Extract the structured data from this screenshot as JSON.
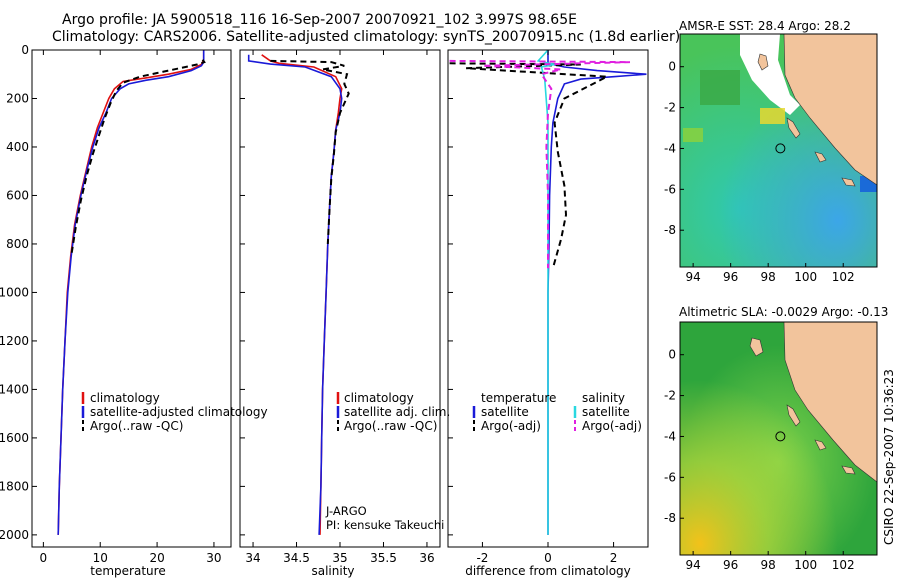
{
  "header": {
    "line1": "Argo profile: JA 5900518_116 16-Sep-2007 20070921_102 3.997S 98.65E",
    "line2": "Climatology: CARS2006. Satellite-adjusted climatology: synTS_20070915.nc (1.8d earlier)"
  },
  "footer": {
    "stamp": "CSIRO 22-Sep-2007 10:36:23"
  },
  "colors": {
    "climatology": "#e01010",
    "satellite": "#1a1ad8",
    "argo": "#000000",
    "sal_satellite": "#29d8e0",
    "sal_argo": "#e020e0",
    "land": "#f2c49c"
  },
  "chart_data": [
    {
      "type": "line",
      "id": "temperature",
      "xlabel": "temperature",
      "ylabel": "",
      "xlim": [
        -2,
        33
      ],
      "ylim": [
        2050,
        0
      ],
      "xticks": [
        0,
        10,
        20,
        30
      ],
      "yticks": [
        0,
        200,
        400,
        600,
        800,
        1000,
        1200,
        1400,
        1600,
        1800,
        2000
      ],
      "legend": [
        "climatology",
        "satellite-adjusted climatology",
        "Argo(..raw -QC)"
      ],
      "series": [
        {
          "name": "climatology",
          "color": "#e01010",
          "dash": "",
          "points": [
            [
              28.2,
              0
            ],
            [
              28.2,
              40
            ],
            [
              27.8,
              60
            ],
            [
              26,
              80
            ],
            [
              22,
              100
            ],
            [
              18,
              115
            ],
            [
              14,
              130
            ],
            [
              12.5,
              160
            ],
            [
              11.5,
              200
            ],
            [
              10.5,
              260
            ],
            [
              9.5,
              320
            ],
            [
              8.5,
              400
            ],
            [
              7.5,
              500
            ],
            [
              6.5,
              600
            ],
            [
              5.5,
              720
            ],
            [
              4.8,
              850
            ],
            [
              4.2,
              1000
            ],
            [
              3.8,
              1200
            ],
            [
              3.4,
              1400
            ],
            [
              3.1,
              1600
            ],
            [
              2.8,
              1800
            ],
            [
              2.6,
              2000
            ]
          ]
        },
        {
          "name": "satellite-adjusted climatology",
          "color": "#1a1ad8",
          "dash": "",
          "points": [
            [
              28.2,
              0
            ],
            [
              28.2,
              50
            ],
            [
              27.8,
              65
            ],
            [
              26,
              85
            ],
            [
              22,
              110
            ],
            [
              18,
              125
            ],
            [
              15,
              140
            ],
            [
              13.5,
              160
            ],
            [
              12,
              200
            ],
            [
              11,
              260
            ],
            [
              9.8,
              320
            ],
            [
              8.7,
              400
            ],
            [
              7.6,
              500
            ],
            [
              6.6,
              600
            ],
            [
              5.6,
              720
            ],
            [
              4.9,
              850
            ],
            [
              4.3,
              1000
            ],
            [
              3.8,
              1200
            ],
            [
              3.4,
              1400
            ],
            [
              3.1,
              1600
            ],
            [
              2.8,
              1800
            ],
            [
              2.6,
              2000
            ]
          ]
        },
        {
          "name": "Argo(..raw -QC)",
          "color": "#000000",
          "dash": "6,4",
          "points": [
            [
              28,
              40
            ],
            [
              28.3,
              50
            ],
            [
              27,
              60
            ],
            [
              24,
              75
            ],
            [
              20,
              95
            ],
            [
              17,
              110
            ],
            [
              14,
              135
            ],
            [
              12.8,
              170
            ],
            [
              11.8,
              220
            ],
            [
              10.8,
              280
            ],
            [
              9.8,
              350
            ],
            [
              8.7,
              430
            ],
            [
              7.6,
              520
            ],
            [
              6.6,
              620
            ],
            [
              5.7,
              730
            ],
            [
              4.9,
              850
            ]
          ]
        }
      ]
    },
    {
      "type": "line",
      "id": "salinity",
      "xlabel": "salinity",
      "xlim": [
        33.85,
        36.15
      ],
      "ylim": [
        2050,
        0
      ],
      "xticks": [
        34,
        34.5,
        35,
        35.5,
        36
      ],
      "legend": [
        "climatology",
        "satellite adj. clim.",
        "Argo(..raw -QC)"
      ],
      "annotation": [
        "J-ARGO",
        "PI: kensuke Takeuchi"
      ],
      "series": [
        {
          "name": "climatology",
          "color": "#e01010",
          "dash": "",
          "points": [
            [
              34.1,
              20
            ],
            [
              34.2,
              45
            ],
            [
              34.3,
              55
            ],
            [
              34.7,
              70
            ],
            [
              34.95,
              110
            ],
            [
              35.02,
              160
            ],
            [
              35.0,
              200
            ],
            [
              34.98,
              260
            ],
            [
              34.95,
              330
            ],
            [
              34.93,
              420
            ],
            [
              34.9,
              520
            ],
            [
              34.88,
              650
            ],
            [
              34.86,
              800
            ],
            [
              34.84,
              1000
            ],
            [
              34.82,
              1200
            ],
            [
              34.8,
              1400
            ],
            [
              34.79,
              1600
            ],
            [
              34.78,
              1800
            ],
            [
              34.77,
              2000
            ]
          ]
        },
        {
          "name": "satellite adj. clim.",
          "color": "#1a1ad8",
          "dash": "",
          "points": [
            [
              33.95,
              20
            ],
            [
              33.95,
              45
            ],
            [
              34.2,
              58
            ],
            [
              34.6,
              70
            ],
            [
              34.9,
              110
            ],
            [
              35.0,
              160
            ],
            [
              35.02,
              200
            ],
            [
              35.0,
              260
            ],
            [
              34.95,
              330
            ],
            [
              34.93,
              420
            ],
            [
              34.9,
              520
            ],
            [
              34.88,
              650
            ],
            [
              34.86,
              800
            ],
            [
              34.84,
              1000
            ],
            [
              34.82,
              1200
            ],
            [
              34.8,
              1400
            ],
            [
              34.79,
              1600
            ],
            [
              34.78,
              1800
            ],
            [
              34.76,
              2000
            ]
          ]
        },
        {
          "name": "Argo(..raw -QC)",
          "color": "#000000",
          "dash": "6,4",
          "points": [
            [
              34.2,
              45
            ],
            [
              34.9,
              50
            ],
            [
              35.05,
              65
            ],
            [
              34.8,
              80
            ],
            [
              35.08,
              100
            ],
            [
              35.05,
              140
            ],
            [
              35.1,
              180
            ],
            [
              35.0,
              260
            ],
            [
              34.95,
              340
            ],
            [
              34.93,
              430
            ],
            [
              34.9,
              530
            ],
            [
              34.88,
              650
            ],
            [
              34.86,
              800
            ]
          ]
        }
      ]
    },
    {
      "type": "line",
      "id": "difference",
      "xlabel": "difference from climatology",
      "xlim": [
        -3.05,
        3.05
      ],
      "ylim": [
        2050,
        0
      ],
      "xticks": [
        -2,
        0,
        2
      ],
      "legend_left_title": "temperature",
      "legend_right_title": "salinity",
      "legend_left": [
        "satellite",
        "Argo(-adj)"
      ],
      "legend_right": [
        "satellite",
        "Argo(-adj)"
      ],
      "series": [
        {
          "name": "temperature satellite",
          "color": "#1a1ad8",
          "dash": "",
          "points": [
            [
              0,
              0
            ],
            [
              0,
              55
            ],
            [
              0.5,
              70
            ],
            [
              1.5,
              85
            ],
            [
              3,
              100
            ],
            [
              2,
              110
            ],
            [
              1,
              120
            ],
            [
              0.5,
              140
            ],
            [
              0.3,
              200
            ],
            [
              0.15,
              300
            ],
            [
              0.1,
              400
            ],
            [
              0.05,
              600
            ],
            [
              0.03,
              800
            ],
            [
              0,
              1000
            ],
            [
              0,
              1500
            ],
            [
              0,
              2000
            ]
          ]
        },
        {
          "name": "temperature Argo(-adj)",
          "color": "#000000",
          "dash": "6,4",
          "points": [
            [
              -3,
              55
            ],
            [
              1,
              60
            ],
            [
              -2.5,
              75
            ],
            [
              1.8,
              110
            ],
            [
              0.5,
              200
            ],
            [
              0.2,
              300
            ],
            [
              0.3,
              420
            ],
            [
              0.5,
              560
            ],
            [
              0.55,
              680
            ],
            [
              0.4,
              780
            ],
            [
              0.15,
              900
            ]
          ]
        },
        {
          "name": "salinity satellite",
          "color": "#29d8e0",
          "dash": "",
          "points": [
            [
              0,
              0
            ],
            [
              -0.3,
              45
            ],
            [
              0.2,
              60
            ],
            [
              -0.2,
              70
            ],
            [
              -0.1,
              120
            ],
            [
              0,
              300
            ],
            [
              0,
              800
            ],
            [
              0,
              1500
            ],
            [
              0,
              2000
            ]
          ]
        },
        {
          "name": "salinity Argo(-adj)",
          "color": "#e020e0",
          "dash": "6,4",
          "points": [
            [
              -3,
              45
            ],
            [
              2.5,
              50
            ],
            [
              1,
              55
            ],
            [
              -2,
              65
            ],
            [
              0.4,
              80
            ],
            [
              -0.2,
              100
            ],
            [
              0.1,
              160
            ],
            [
              0,
              260
            ],
            [
              -0.05,
              400
            ],
            [
              0,
              600
            ],
            [
              0,
              800
            ],
            [
              0,
              900
            ]
          ]
        }
      ]
    },
    {
      "type": "heatmap",
      "id": "sst-map",
      "title": "AMSR-E SST: 28.4 Argo: 28.2",
      "xlim": [
        93.3,
        103.8
      ],
      "ylim": [
        -9.8,
        1.6
      ],
      "xticks": [
        94,
        96,
        98,
        100,
        102
      ],
      "yticks": [
        0,
        -2,
        -4,
        -6,
        -8
      ],
      "marker": {
        "lon": 98.65,
        "lat": -3.997
      }
    },
    {
      "type": "heatmap",
      "id": "sla-map",
      "title": "Altimetric SLA: -0.0029 Argo: -0.13",
      "xlim": [
        93.3,
        103.8
      ],
      "ylim": [
        -9.8,
        1.6
      ],
      "xticks": [
        94,
        96,
        98,
        100,
        102
      ],
      "yticks": [
        0,
        -2,
        -4,
        -6,
        -8
      ],
      "marker": {
        "lon": 98.65,
        "lat": -3.997
      }
    }
  ]
}
